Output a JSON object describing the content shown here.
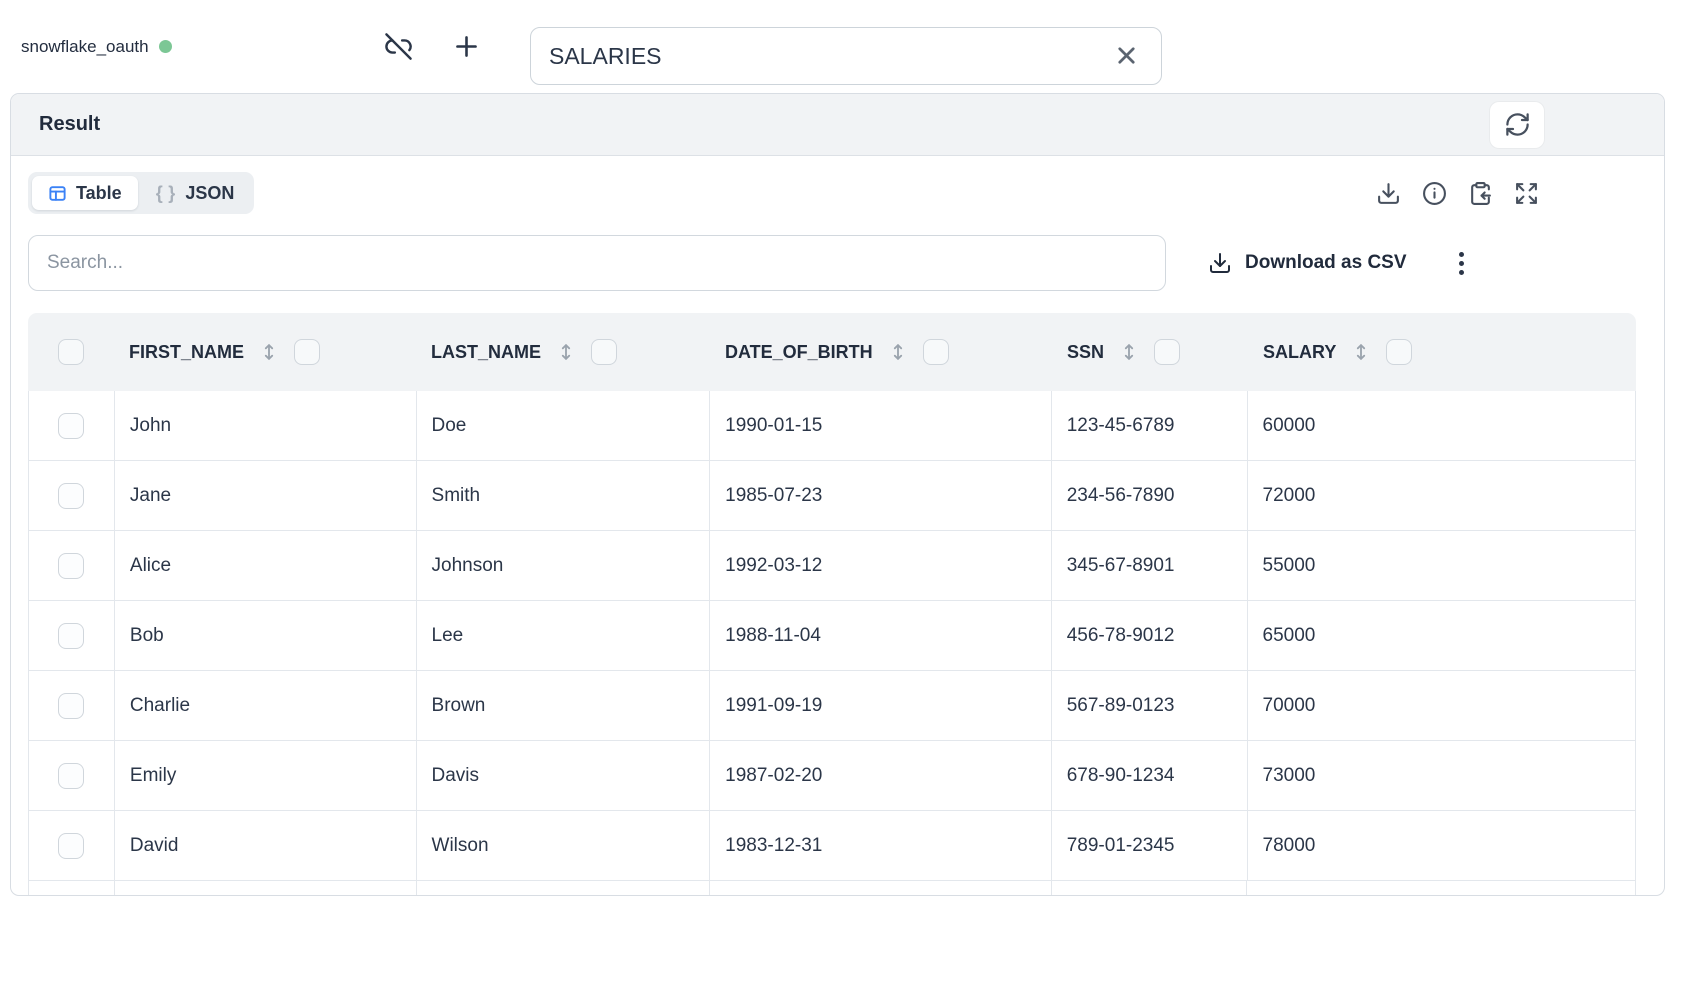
{
  "topbar": {
    "connection": {
      "name": "snowflake_oauth",
      "status": "connected",
      "status_color": "#7cc795"
    },
    "icons": [
      "unlink-icon",
      "plus-icon"
    ],
    "table_name_input": {
      "value": "SALARIES",
      "clear_icon": "x-icon"
    }
  },
  "result_panel": {
    "title": "Result",
    "refresh_icon": "refresh-icon",
    "view_tabs": [
      {
        "label": "Table",
        "icon": "table-icon",
        "selected": true
      },
      {
        "label": "JSON",
        "icon": "braces-icon",
        "selected": false
      }
    ],
    "toolbar_icons": [
      "download-icon",
      "info-icon",
      "clipboard-paste-icon",
      "expand-icon"
    ],
    "search": {
      "placeholder": "Search..."
    },
    "download_csv": {
      "label": "Download as CSV",
      "icon": "download-icon"
    },
    "more_menu_icon": "kebab-icon",
    "colors": {
      "accent_blue": "#3b82f6",
      "status_green": "#7cc795",
      "header_bg": "#f1f3f5",
      "border": "#e3e7ec",
      "text_dark": "#2b3648"
    }
  },
  "table": {
    "columns": [
      "FIRST_NAME",
      "LAST_NAME",
      "DATE_OF_BIRTH",
      "SSN",
      "SALARY"
    ],
    "column_controls": [
      "sort-icon",
      "column-checkbox"
    ],
    "rows": [
      [
        "John",
        "Doe",
        "1990-01-15",
        "123-45-6789",
        "60000"
      ],
      [
        "Jane",
        "Smith",
        "1985-07-23",
        "234-56-7890",
        "72000"
      ],
      [
        "Alice",
        "Johnson",
        "1992-03-12",
        "345-67-8901",
        "55000"
      ],
      [
        "Bob",
        "Lee",
        "1988-11-04",
        "456-78-9012",
        "65000"
      ],
      [
        "Charlie",
        "Brown",
        "1991-09-19",
        "567-89-0123",
        "70000"
      ],
      [
        "Emily",
        "Davis",
        "1987-02-20",
        "678-90-1234",
        "73000"
      ],
      [
        "David",
        "Wilson",
        "1983-12-31",
        "789-01-2345",
        "78000"
      ]
    ],
    "partial_next_row_visible": true
  }
}
